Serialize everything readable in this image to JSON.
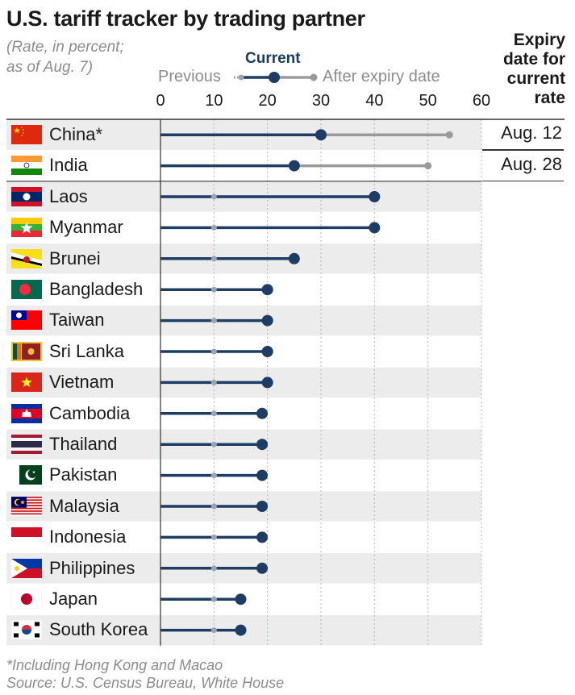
{
  "title": "U.S. tariff tracker by trading partner",
  "subtitle": [
    "(Rate, in percent;",
    "as of Aug. 7)"
  ],
  "expiry_header": [
    "Expiry",
    "date for",
    "current",
    "rate"
  ],
  "legend": {
    "current": "Current",
    "previous": "Previous",
    "after": "After expiry date"
  },
  "colors": {
    "current": "#1d3d64",
    "previous_dot": "#9aa6b4",
    "after": "#9a9a9a",
    "row_band": "#ececec",
    "grid": "#b5b5b5"
  },
  "chart_data": {
    "type": "dot-range",
    "title": "U.S. tariff tracker by trading partner",
    "xlim": [
      0,
      60
    ],
    "xticks": [
      "0",
      "10",
      "20",
      "30",
      "40",
      "50",
      "60"
    ],
    "grid": true,
    "rows": [
      {
        "country": "China*",
        "previous": null,
        "current": 30,
        "after": 54,
        "expiry": "Aug. 12",
        "flag": "china"
      },
      {
        "country": "India",
        "previous": null,
        "current": 25,
        "after": 50,
        "expiry": "Aug. 28",
        "flag": "india"
      },
      {
        "country": "Laos",
        "previous": 10,
        "current": 40,
        "after": null,
        "expiry": "",
        "flag": "laos"
      },
      {
        "country": "Myanmar",
        "previous": 10,
        "current": 40,
        "after": null,
        "expiry": "",
        "flag": "myanmar"
      },
      {
        "country": "Brunei",
        "previous": 10,
        "current": 25,
        "after": null,
        "expiry": "",
        "flag": "brunei"
      },
      {
        "country": "Bangladesh",
        "previous": 10,
        "current": 20,
        "after": null,
        "expiry": "",
        "flag": "bangladesh"
      },
      {
        "country": "Taiwan",
        "previous": 10,
        "current": 20,
        "after": null,
        "expiry": "",
        "flag": "taiwan"
      },
      {
        "country": "Sri Lanka",
        "previous": 10,
        "current": 20,
        "after": null,
        "expiry": "",
        "flag": "srilanka"
      },
      {
        "country": "Vietnam",
        "previous": 10,
        "current": 20,
        "after": null,
        "expiry": "",
        "flag": "vietnam"
      },
      {
        "country": "Cambodia",
        "previous": 10,
        "current": 19,
        "after": null,
        "expiry": "",
        "flag": "cambodia"
      },
      {
        "country": "Thailand",
        "previous": 10,
        "current": 19,
        "after": null,
        "expiry": "",
        "flag": "thailand"
      },
      {
        "country": "Pakistan",
        "previous": 10,
        "current": 19,
        "after": null,
        "expiry": "",
        "flag": "pakistan"
      },
      {
        "country": "Malaysia",
        "previous": 10,
        "current": 19,
        "after": null,
        "expiry": "",
        "flag": "malaysia"
      },
      {
        "country": "Indonesia",
        "previous": 10,
        "current": 19,
        "after": null,
        "expiry": "",
        "flag": "indonesia"
      },
      {
        "country": "Philippines",
        "previous": 10,
        "current": 19,
        "after": null,
        "expiry": "",
        "flag": "philippines"
      },
      {
        "country": "Japan",
        "previous": 10,
        "current": 15,
        "after": null,
        "expiry": "",
        "flag": "japan"
      },
      {
        "country": "South Korea",
        "previous": 10,
        "current": 15,
        "after": null,
        "expiry": "",
        "flag": "southkorea"
      }
    ]
  },
  "footnote": [
    "*Including Hong Kong and Macao",
    "Source: U.S. Census Bureau, White House"
  ]
}
